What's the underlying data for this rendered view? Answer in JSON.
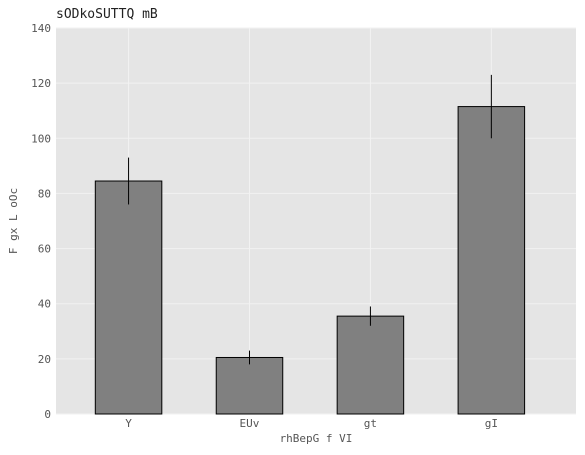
{
  "chart_data": {
    "type": "bar",
    "title": "sODkoSUTTQ mB",
    "xlabel": "rhBepG f VI",
    "ylabel": "F gx  L oOc",
    "categories": [
      "Y",
      "EUv",
      "gt",
      "gI"
    ],
    "values": [
      84.5,
      20.5,
      35.5,
      111.5
    ],
    "errors": [
      8.5,
      2.5,
      3.5,
      11.5
    ],
    "ylim": [
      0,
      140
    ],
    "yticks": [
      0,
      20,
      40,
      60,
      80,
      100,
      120,
      140
    ],
    "grid": true,
    "bar_color": "#808080",
    "bar_edge_color": "#000000",
    "plot_background": "#e5e5e5",
    "grid_color": "#f2f2f2",
    "error_color": "#000000"
  }
}
